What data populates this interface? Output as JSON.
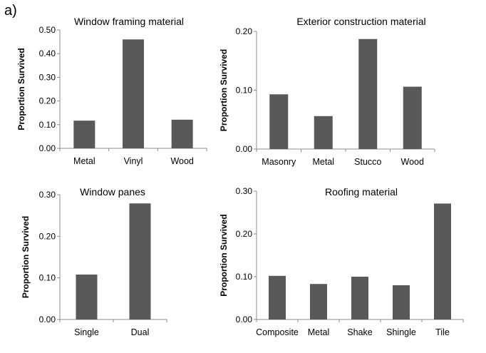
{
  "figure": {
    "panel_letter": "a)"
  },
  "colors": {
    "bar": "#595959",
    "axis": "#8c8c8c"
  },
  "chart_data": [
    {
      "type": "bar",
      "title": "Window framing material",
      "ylabel": "Proportion Survived",
      "xlabel": "",
      "categories": [
        "Metal",
        "Vinyl",
        "Wood"
      ],
      "values": [
        0.117,
        0.46,
        0.121
      ],
      "ylim": [
        0,
        0.5
      ],
      "yticks": [
        "0.00",
        "0.10",
        "0.20",
        "0.30",
        "0.40",
        "0.50"
      ],
      "grid": false
    },
    {
      "type": "bar",
      "title": "Exterior construction material",
      "ylabel": "Proportion Survived",
      "xlabel": "",
      "categories": [
        "Masonry",
        "Metal",
        "Stucco",
        "Wood"
      ],
      "values": [
        0.093,
        0.056,
        0.187,
        0.106
      ],
      "ylim": [
        0,
        0.2
      ],
      "yticks": [
        "0.00",
        "0.10",
        "0.20"
      ],
      "grid": false
    },
    {
      "type": "bar",
      "title": "Window panes",
      "ylabel": "Proportion Survived",
      "xlabel": "",
      "categories": [
        "Single",
        "Dual"
      ],
      "values": [
        0.108,
        0.279
      ],
      "ylim": [
        0,
        0.3
      ],
      "yticks": [
        "0.00",
        "0.10",
        "0.20",
        "0.30"
      ],
      "grid": false
    },
    {
      "type": "bar",
      "title": "Roofing material",
      "ylabel": "Proportion Survived",
      "xlabel": "",
      "categories": [
        "Composite",
        "Metal",
        "Shake",
        "Shingle",
        "Tile"
      ],
      "values": [
        0.102,
        0.083,
        0.1,
        0.08,
        0.271
      ],
      "ylim": [
        0,
        0.3
      ],
      "yticks": [
        "0.00",
        "0.10",
        "0.20",
        "0.30"
      ],
      "grid": false
    }
  ]
}
